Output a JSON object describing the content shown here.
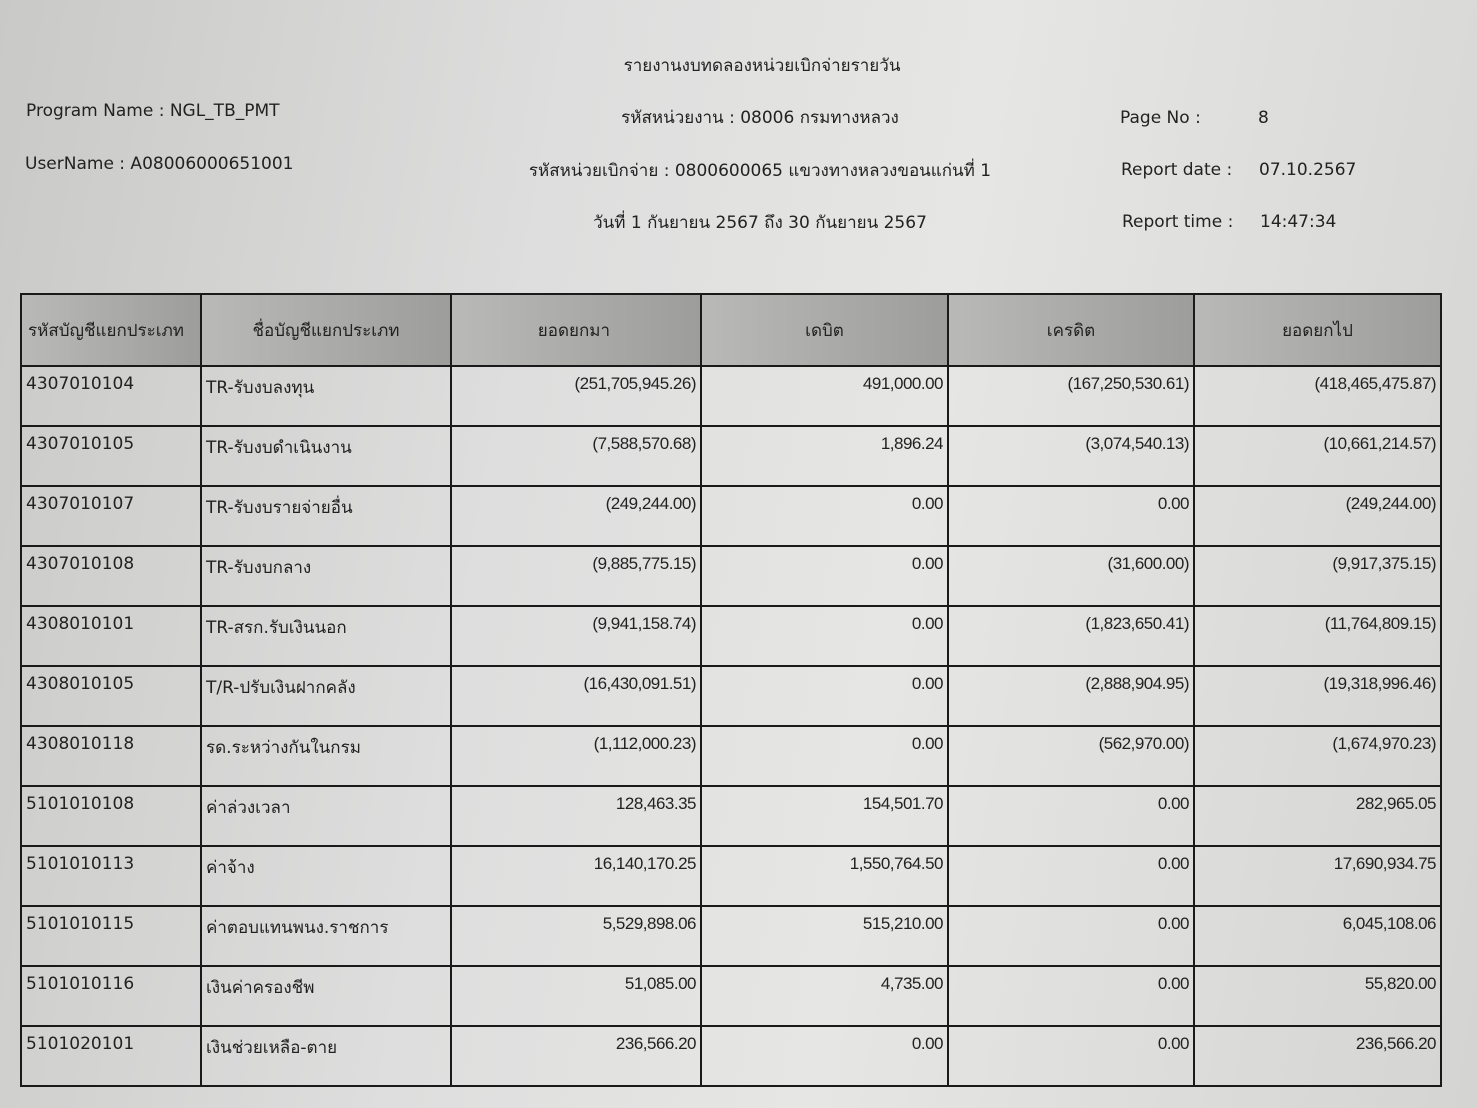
{
  "header": {
    "title": "รายงานงบทดลองหน่วยเบิกจ่ายรายวัน",
    "agency": "รหัสหน่วยงาน : 08006 กรมทางหลวง",
    "disbursing_unit": "รหัสหน่วยเบิกจ่าย : 0800600065 แขวงทางหลวงขอนแก่นที่ 1",
    "period": "วันที่ 1 กันยายน 2567 ถึง 30 กันยายน 2567",
    "program_name": "Program Name : NGL_TB_PMT",
    "user_name": "UserName : A08006000651001",
    "page_no_label": "Page No :",
    "page_no": "8",
    "report_date_label": "Report date :",
    "report_date": "07.10.2567",
    "report_time_label": "Report time :",
    "report_time": "14:47:34"
  },
  "table": {
    "columns": [
      "รหัสบัญชีแยกประเภท",
      "ชื่อบัญชีแยกประเภท",
      "ยอดยกมา",
      "เดบิต",
      "เครดิต",
      "ยอดยกไป"
    ],
    "rows": [
      [
        "4307010104",
        "TR-รับงบลงทุน",
        "(251,705,945.26)",
        "491,000.00",
        "(167,250,530.61)",
        "(418,465,475.87)"
      ],
      [
        "4307010105",
        "TR-รับงบดำเนินงาน",
        "(7,588,570.68)",
        "1,896.24",
        "(3,074,540.13)",
        "(10,661,214.57)"
      ],
      [
        "4307010107",
        "TR-รับงบรายจ่ายอื่น",
        "(249,244.00)",
        "0.00",
        "0.00",
        "(249,244.00)"
      ],
      [
        "4307010108",
        "TR-รับงบกลาง",
        "(9,885,775.15)",
        "0.00",
        "(31,600.00)",
        "(9,917,375.15)"
      ],
      [
        "4308010101",
        "TR-สรก.รับเงินนอก",
        "(9,941,158.74)",
        "0.00",
        "(1,823,650.41)",
        "(11,764,809.15)"
      ],
      [
        "4308010105",
        "T/R-ปรับเงินฝากคลัง",
        "(16,430,091.51)",
        "0.00",
        "(2,888,904.95)",
        "(19,318,996.46)"
      ],
      [
        "4308010118",
        "รด.ระหว่างกันในกรม",
        "(1,112,000.23)",
        "0.00",
        "(562,970.00)",
        "(1,674,970.23)"
      ],
      [
        "5101010108",
        "ค่าล่วงเวลา",
        "128,463.35",
        "154,501.70",
        "0.00",
        "282,965.05"
      ],
      [
        "5101010113",
        "ค่าจ้าง",
        "16,140,170.25",
        "1,550,764.50",
        "0.00",
        "17,690,934.75"
      ],
      [
        "5101010115",
        "ค่าตอบแทนพนง.ราชการ",
        "5,529,898.06",
        "515,210.00",
        "0.00",
        "6,045,108.06"
      ],
      [
        "5101010116",
        "เงินค่าครองชีพ",
        "51,085.00",
        "4,735.00",
        "0.00",
        "55,820.00"
      ],
      [
        "5101020101",
        "เงินช่วยเหลือ-ตาย",
        "236,566.20",
        "0.00",
        "0.00",
        "236,566.20"
      ]
    ]
  }
}
